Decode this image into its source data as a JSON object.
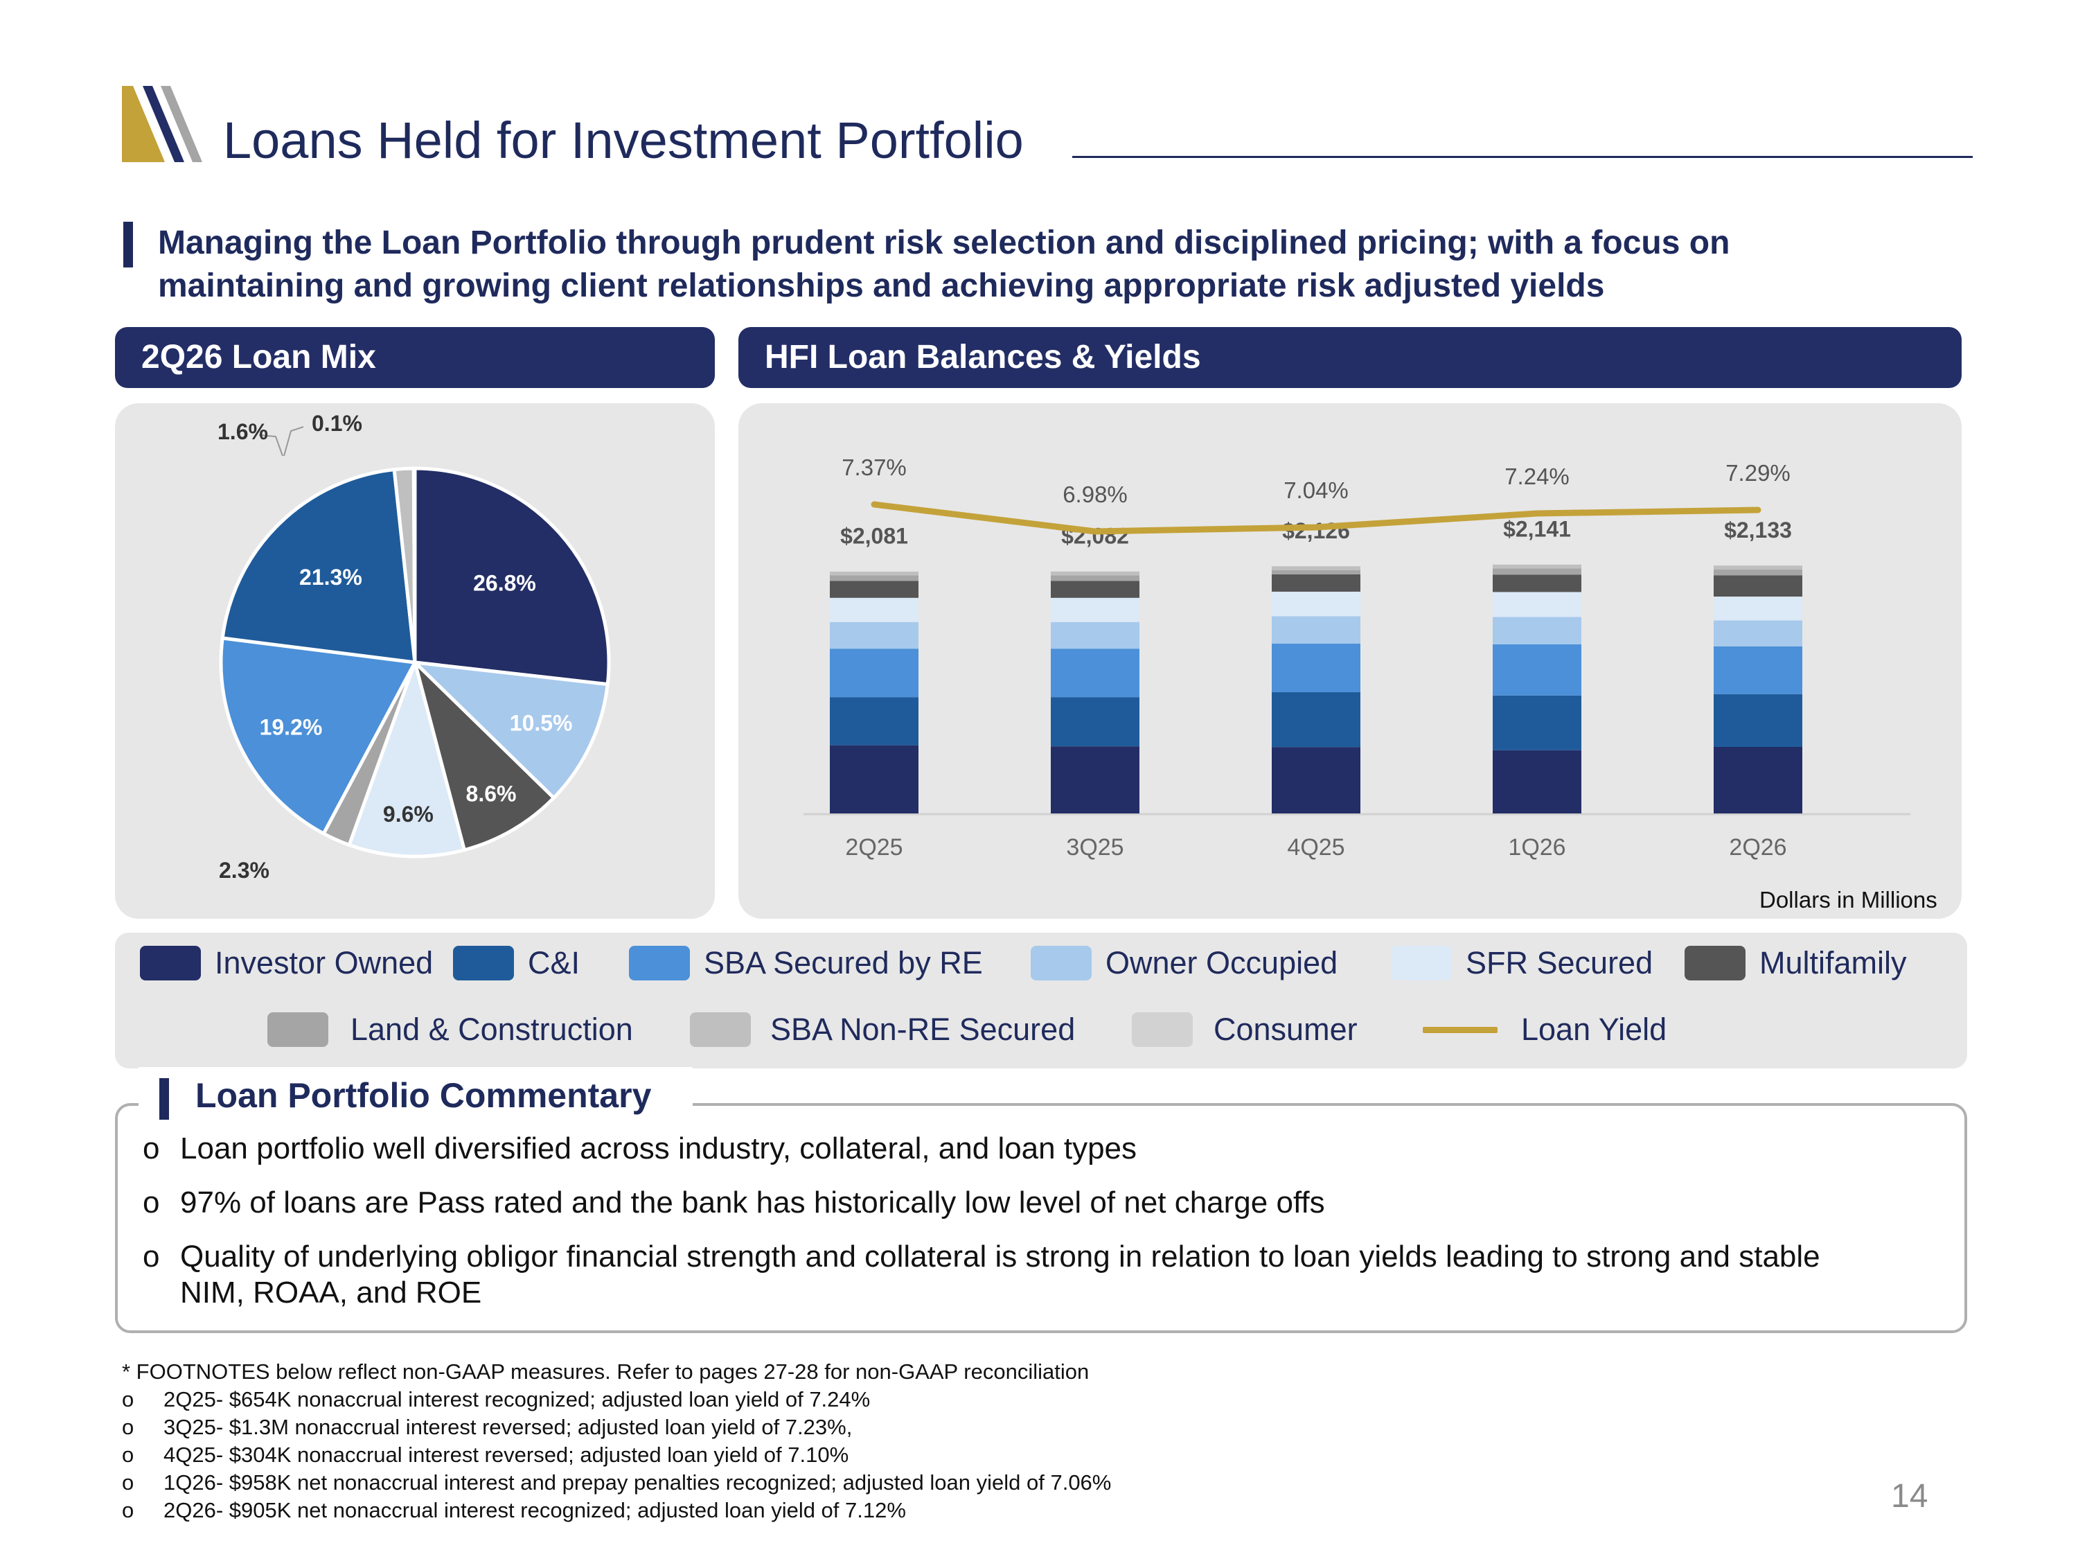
{
  "header": {
    "title": "Loans Held for Investment Portfolio"
  },
  "subtitle": "Managing the Loan Portfolio through prudent risk selection and disciplined pricing; with a focus on maintaining and growing client relationships and achieving appropriate risk adjusted yields",
  "panels": {
    "pie_title": "2Q26 Loan Mix",
    "bar_title": "HFI Loan Balances & Yields",
    "units_note": "Dollars in Millions"
  },
  "colors": {
    "navy": "#232e66",
    "investor_owned": "#232e66",
    "ci": "#1f5b9a",
    "sba_re": "#4b90d8",
    "owner_occupied": "#a7c9ec",
    "sfr_secured": "#dce9f6",
    "multifamily": "#555555",
    "land_construction": "#a5a5a5",
    "sba_non_re": "#bfbfbf",
    "consumer": "#d2d2d2",
    "loan_yield": "#c4a23a"
  },
  "legend": [
    {
      "label": "Investor Owned",
      "color": "#232e66"
    },
    {
      "label": "C&I",
      "color": "#1f5b9a"
    },
    {
      "label": "SBA Secured by RE",
      "color": "#4b90d8"
    },
    {
      "label": "Owner Occupied",
      "color": "#a7c9ec"
    },
    {
      "label": "SFR Secured",
      "color": "#dce9f6"
    },
    {
      "label": "Multifamily",
      "color": "#555555"
    },
    {
      "label": "Land & Construction",
      "color": "#a5a5a5"
    },
    {
      "label": "SBA Non-RE Secured",
      "color": "#bfbfbf"
    },
    {
      "label": "Consumer",
      "color": "#d2d2d2"
    },
    {
      "label": "Loan Yield",
      "color": "#c4a23a"
    }
  ],
  "chart_data": [
    {
      "type": "pie",
      "title": "2Q26 Loan Mix",
      "slices": [
        {
          "name": "Investor Owned",
          "value": 26.8,
          "label": "26.8%",
          "color": "#232e66"
        },
        {
          "name": "Owner Occupied",
          "value": 10.5,
          "label": "10.5%",
          "color": "#a7c9ec"
        },
        {
          "name": "Multifamily",
          "value": 8.6,
          "label": "8.6%",
          "color": "#555555"
        },
        {
          "name": "SFR Secured",
          "value": 9.6,
          "label": "9.6%",
          "color": "#dce9f6"
        },
        {
          "name": "Land & Construction",
          "value": 2.3,
          "label": "2.3%",
          "color": "#a5a5a5"
        },
        {
          "name": "SBA Secured by RE",
          "value": 19.2,
          "label": "19.2%",
          "color": "#4b90d8"
        },
        {
          "name": "C&I",
          "value": 21.3,
          "label": "21.3%",
          "color": "#1f5b9a"
        },
        {
          "name": "SBA Non-RE Secured",
          "value": 1.6,
          "label": "1.6%",
          "color": "#bfbfbf"
        },
        {
          "name": "Consumer",
          "value": 0.1,
          "label": "0.1%",
          "color": "#d2d2d2"
        }
      ]
    },
    {
      "type": "bar",
      "title": "HFI Loan Balances & Yields",
      "stacked": true,
      "categories": [
        "2Q25",
        "3Q25",
        "4Q25",
        "1Q26",
        "2Q26"
      ],
      "totals": [
        2081,
        2082,
        2126,
        2141,
        2133
      ],
      "total_labels": [
        "$2,081",
        "$2,082",
        "$2,126",
        "$2,141",
        "$2,133"
      ],
      "series": [
        {
          "name": "Investor Owned",
          "color": "#232e66",
          "values": [
            586,
            577,
            571,
            544,
            572
          ]
        },
        {
          "name": "C&I",
          "color": "#1f5b9a",
          "values": [
            414,
            423,
            472,
            470,
            454
          ]
        },
        {
          "name": "SBA Secured by RE",
          "color": "#4b90d8",
          "values": [
            417,
            417,
            418,
            440,
            410
          ]
        },
        {
          "name": "Owner Occupied",
          "color": "#a7c9ec",
          "values": [
            229,
            229,
            234,
            236,
            224
          ]
        },
        {
          "name": "SFR Secured",
          "color": "#dce9f6",
          "values": [
            208,
            208,
            212,
            214,
            205
          ]
        },
        {
          "name": "Multifamily",
          "color": "#555555",
          "values": [
            146,
            146,
            149,
            150,
            183
          ]
        },
        {
          "name": "Land & Construction",
          "color": "#a5a5a5",
          "values": [
            48,
            48,
            36,
            52,
            49
          ]
        },
        {
          "name": "SBA Non-RE Secured",
          "color": "#bfbfbf",
          "values": [
            31,
            32,
            32,
            33,
            34
          ]
        },
        {
          "name": "Consumer",
          "color": "#d2d2d2",
          "values": [
            2,
            2,
            2,
            2,
            2
          ]
        }
      ],
      "line": {
        "name": "Loan Yield",
        "color": "#c4a23a",
        "values": [
          7.37,
          6.98,
          7.04,
          7.24,
          7.29
        ],
        "labels": [
          "7.37%",
          "6.98%",
          "7.04%",
          "7.24%",
          "7.29%"
        ]
      },
      "units": "Dollars in Millions",
      "grid": false
    }
  ],
  "commentary": {
    "title": "Loan Portfolio Commentary",
    "bullet_char": "o",
    "bullets": [
      "Loan portfolio well diversified across industry, collateral, and loan types",
      "97% of loans are Pass rated and the bank has historically low level of net charge offs",
      "Quality of underlying obligor financial strength and collateral is strong in relation to loan yields leading to strong and stable NIM, ROAA, and ROE"
    ]
  },
  "footnotes": {
    "intro": "* FOOTNOTES below reflect non-GAAP measures.  Refer to pages 27-28 for non-GAAP reconciliation",
    "items": [
      "2Q25-  $654K nonaccrual interest recognized; adjusted loan yield of 7.24%",
      "3Q25-  $1.3M nonaccrual interest reversed; adjusted loan yield of 7.23%,",
      "4Q25-  $304K nonaccrual interest reversed; adjusted loan yield of 7.10%",
      "1Q26-  $958K net nonaccrual interest and prepay penalties recognized; adjusted loan yield of 7.06%",
      "2Q26-  $905K net nonaccrual interest recognized; adjusted loan yield of 7.12%"
    ]
  },
  "page_number": "14"
}
